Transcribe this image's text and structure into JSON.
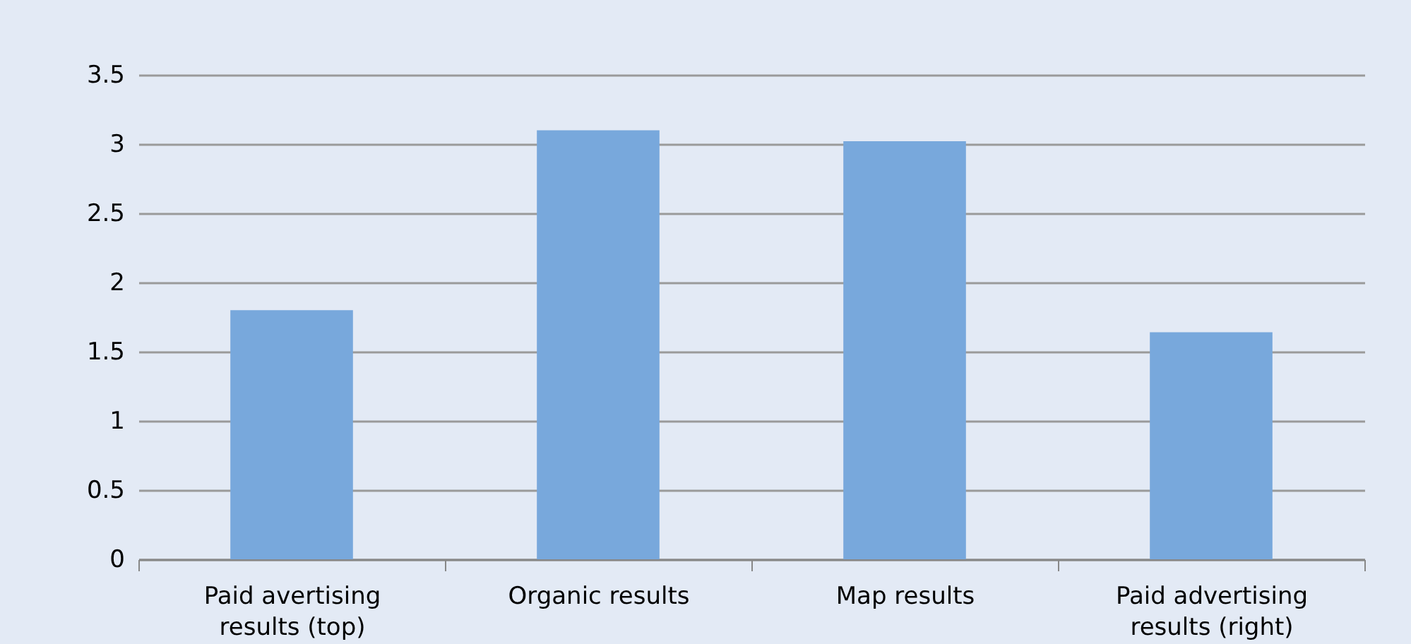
{
  "chart_data": {
    "type": "bar",
    "categories": [
      "Paid avertising results (top)",
      "Organic results",
      "Map results",
      "Paid advertising results (right)"
    ],
    "values": [
      1.8,
      3.1,
      3.02,
      1.64
    ],
    "color": "#78a8dc",
    "ylim": [
      0,
      3.5
    ],
    "yticks": [
      0,
      0.5,
      1,
      1.5,
      2,
      2.5,
      3,
      3.5
    ],
    "grid": "y"
  }
}
